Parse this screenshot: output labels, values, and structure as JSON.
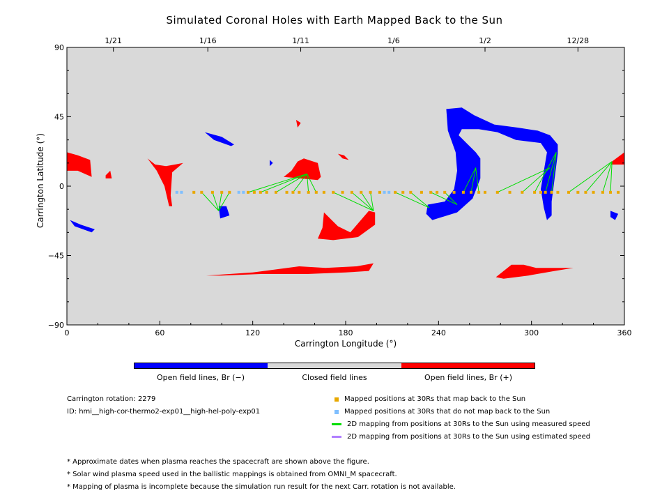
{
  "chart_data": {
    "type": "scatter",
    "title": "Simulated Coronal Holes with Earth Mapped Back to the Sun",
    "xlabel": "Carrington Longitude (°)",
    "ylabel": "Carrington Latitude (°)",
    "xlim": [
      0,
      360
    ],
    "ylim": [
      -90,
      90
    ],
    "x_ticks": [
      "0",
      "60",
      "120",
      "180",
      "240",
      "300",
      "360"
    ],
    "y_ticks": [
      "90",
      "45",
      "0",
      "−45",
      "−90"
    ],
    "top_axis": [
      {
        "lon": 30,
        "label": "1/21"
      },
      {
        "lon": 91,
        "label": "1/16"
      },
      {
        "lon": 151,
        "label": "1/11"
      },
      {
        "lon": 211,
        "label": "1/6"
      },
      {
        "lon": 270,
        "label": "1/2"
      },
      {
        "lon": 330,
        "label": "12/28"
      }
    ],
    "background_color": "#d9d9d9",
    "colors": {
      "negative": "#0000ff",
      "positive": "#ff0000",
      "mapped": "#e8a800",
      "unmapped": "#7fbfff",
      "measured_line": "#00dd00",
      "estimated_line": "#b07fff"
    },
    "mapped_positions_30Rs": [
      [
        82,
        -4
      ],
      [
        87,
        -4
      ],
      [
        94,
        -4
      ],
      [
        100,
        -4
      ],
      [
        105,
        -4
      ],
      [
        117,
        -4
      ],
      [
        121,
        -4
      ],
      [
        125,
        -4
      ],
      [
        129,
        -4
      ],
      [
        135,
        -4
      ],
      [
        142,
        -4
      ],
      [
        146,
        -4
      ],
      [
        150,
        -4
      ],
      [
        156,
        -4
      ],
      [
        161,
        -4
      ],
      [
        166,
        -4
      ],
      [
        172,
        -4
      ],
      [
        178,
        -4
      ],
      [
        184,
        -4
      ],
      [
        190,
        -4
      ],
      [
        196,
        -4
      ],
      [
        202,
        -4
      ],
      [
        212,
        -4
      ],
      [
        217,
        -4
      ],
      [
        222,
        -4
      ],
      [
        229,
        -4
      ],
      [
        235,
        -4
      ],
      [
        239,
        -4
      ],
      [
        244,
        -4
      ],
      [
        250,
        -4
      ],
      [
        256,
        -4
      ],
      [
        261,
        -4
      ],
      [
        266,
        -4
      ],
      [
        270,
        -4
      ],
      [
        278,
        -4
      ],
      [
        286,
        -4
      ],
      [
        294,
        -4
      ],
      [
        302,
        -4
      ],
      [
        306,
        -4
      ],
      [
        309,
        -4
      ],
      [
        313,
        -4
      ],
      [
        317,
        -4
      ],
      [
        324,
        -4
      ],
      [
        330,
        -4
      ],
      [
        335,
        -4
      ],
      [
        340,
        -4
      ],
      [
        346,
        -4
      ],
      [
        351,
        -4
      ],
      [
        356,
        -4
      ]
    ],
    "unmapped_positions_30Rs": [
      [
        71,
        -4
      ],
      [
        74,
        -4
      ],
      [
        111,
        -4
      ],
      [
        114,
        -4
      ],
      [
        205,
        -4
      ],
      [
        208,
        -4
      ]
    ],
    "measured_speed_mappings": [
      [
        [
          87,
          -4
        ],
        [
          98,
          -16
        ]
      ],
      [
        [
          94,
          -4
        ],
        [
          98,
          -16
        ]
      ],
      [
        [
          100,
          -4
        ],
        [
          98,
          -16
        ]
      ],
      [
        [
          105,
          -4
        ],
        [
          98,
          -16
        ]
      ],
      [
        [
          117,
          -4
        ],
        [
          155,
          8
        ]
      ],
      [
        [
          125,
          -4
        ],
        [
          155,
          8
        ]
      ],
      [
        [
          135,
          -4
        ],
        [
          155,
          8
        ]
      ],
      [
        [
          146,
          -4
        ],
        [
          155,
          8
        ]
      ],
      [
        [
          156,
          -4
        ],
        [
          155,
          8
        ]
      ],
      [
        [
          161,
          -4
        ],
        [
          155,
          8
        ]
      ],
      [
        [
          172,
          -4
        ],
        [
          198,
          -16
        ]
      ],
      [
        [
          184,
          -4
        ],
        [
          198,
          -16
        ]
      ],
      [
        [
          190,
          -4
        ],
        [
          198,
          -16
        ]
      ],
      [
        [
          196,
          -4
        ],
        [
          198,
          -16
        ]
      ],
      [
        [
          212,
          -4
        ],
        [
          234,
          -14
        ]
      ],
      [
        [
          222,
          -4
        ],
        [
          234,
          -14
        ]
      ],
      [
        [
          235,
          -4
        ],
        [
          252,
          -12
        ]
      ],
      [
        [
          244,
          -4
        ],
        [
          252,
          -12
        ]
      ],
      [
        [
          256,
          -4
        ],
        [
          264,
          12
        ]
      ],
      [
        [
          261,
          -4
        ],
        [
          264,
          12
        ]
      ],
      [
        [
          266,
          -4
        ],
        [
          264,
          12
        ]
      ],
      [
        [
          278,
          -4
        ],
        [
          312,
          12
        ]
      ],
      [
        [
          294,
          -4
        ],
        [
          312,
          12
        ]
      ],
      [
        [
          302,
          -4
        ],
        [
          316,
          22
        ]
      ],
      [
        [
          309,
          -4
        ],
        [
          316,
          22
        ]
      ],
      [
        [
          313,
          -4
        ],
        [
          316,
          22
        ]
      ],
      [
        [
          324,
          -4
        ],
        [
          352,
          16
        ]
      ],
      [
        [
          335,
          -4
        ],
        [
          352,
          16
        ]
      ],
      [
        [
          346,
          -4
        ],
        [
          352,
          16
        ]
      ],
      [
        [
          351,
          -4
        ],
        [
          352,
          16
        ]
      ]
    ],
    "coronal_holes": [
      {
        "polarity": "positive",
        "points": [
          [
            0,
            22
          ],
          [
            7,
            20
          ],
          [
            15,
            17
          ],
          [
            16,
            6
          ],
          [
            7,
            10
          ],
          [
            0,
            10
          ]
        ]
      },
      {
        "polarity": "positive",
        "points": [
          [
            352,
            16
          ],
          [
            360,
            22
          ],
          [
            360,
            14
          ],
          [
            352,
            14
          ]
        ]
      },
      {
        "polarity": "positive",
        "points": [
          [
            25,
            7
          ],
          [
            28,
            10
          ],
          [
            29,
            5
          ],
          [
            25,
            5
          ]
        ]
      },
      {
        "polarity": "positive",
        "points": [
          [
            52,
            18
          ],
          [
            57,
            14
          ],
          [
            64,
            13
          ],
          [
            75,
            15
          ],
          [
            68,
            9
          ],
          [
            67,
            -6
          ],
          [
            68,
            -13
          ],
          [
            66,
            -13
          ],
          [
            63,
            0
          ],
          [
            58,
            10
          ]
        ]
      },
      {
        "polarity": "positive",
        "points": [
          [
            140,
            6
          ],
          [
            145,
            10
          ],
          [
            149,
            16
          ],
          [
            153,
            18
          ],
          [
            162,
            15
          ],
          [
            164,
            6
          ],
          [
            162,
            4
          ]
        ]
      },
      {
        "polarity": "positive",
        "points": [
          [
            148,
            43
          ],
          [
            151,
            41
          ],
          [
            149,
            38
          ]
        ]
      },
      {
        "polarity": "positive",
        "points": [
          [
            175,
            21
          ],
          [
            179,
            20
          ],
          [
            182,
            17
          ],
          [
            178,
            18
          ]
        ]
      },
      {
        "polarity": "positive",
        "points": [
          [
            166,
            -17
          ],
          [
            175,
            -26
          ],
          [
            183,
            -30
          ],
          [
            195,
            -16
          ],
          [
            199,
            -17
          ],
          [
            199,
            -25
          ],
          [
            188,
            -33
          ],
          [
            172,
            -35
          ],
          [
            162,
            -34
          ],
          [
            165,
            -27
          ]
        ]
      },
      {
        "polarity": "positive",
        "points": [
          [
            90,
            -58
          ],
          [
            120,
            -56
          ],
          [
            150,
            -52
          ],
          [
            167,
            -53
          ],
          [
            187,
            -52
          ],
          [
            198,
            -50
          ],
          [
            195,
            -55
          ],
          [
            180,
            -56
          ],
          [
            155,
            -57
          ],
          [
            125,
            -57
          ],
          [
            100,
            -58
          ]
        ]
      },
      {
        "polarity": "positive",
        "points": [
          [
            277,
            -59
          ],
          [
            287,
            -51
          ],
          [
            295,
            -51
          ],
          [
            303,
            -53
          ],
          [
            327,
            -53
          ],
          [
            315,
            -55
          ],
          [
            298,
            -58
          ],
          [
            282,
            -60
          ]
        ]
      },
      {
        "polarity": "negative",
        "points": [
          [
            2,
            -22
          ],
          [
            9,
            -25
          ],
          [
            18,
            -28
          ],
          [
            16,
            -30
          ],
          [
            5,
            -26
          ]
        ]
      },
      {
        "polarity": "negative",
        "points": [
          [
            98,
            -13
          ],
          [
            103,
            -13
          ],
          [
            105,
            -19
          ],
          [
            99,
            -21
          ]
        ]
      },
      {
        "polarity": "negative",
        "points": [
          [
            89,
            35
          ],
          [
            100,
            32
          ],
          [
            108,
            27
          ],
          [
            106,
            26
          ],
          [
            95,
            30
          ]
        ]
      },
      {
        "polarity": "negative",
        "points": [
          [
            131,
            17
          ],
          [
            133,
            15
          ],
          [
            131,
            13
          ]
        ]
      },
      {
        "polarity": "negative",
        "points": [
          [
            245,
            50
          ],
          [
            255,
            51
          ],
          [
            263,
            46
          ],
          [
            276,
            40
          ],
          [
            291,
            38
          ],
          [
            304,
            36
          ],
          [
            312,
            33
          ],
          [
            317,
            27
          ],
          [
            317,
            21
          ],
          [
            313,
            -10
          ],
          [
            313,
            -19
          ],
          [
            310,
            -22
          ],
          [
            308,
            -14
          ],
          [
            306,
            -2
          ],
          [
            310,
            22
          ],
          [
            306,
            28
          ],
          [
            290,
            30
          ],
          [
            278,
            35
          ],
          [
            266,
            37
          ],
          [
            255,
            37
          ],
          [
            253,
            33
          ],
          [
            258,
            28
          ],
          [
            264,
            22
          ],
          [
            267,
            18
          ],
          [
            267,
            5
          ],
          [
            262,
            -8
          ],
          [
            252,
            -17
          ],
          [
            236,
            -22
          ],
          [
            232,
            -18
          ],
          [
            233,
            -12
          ],
          [
            244,
            -10
          ],
          [
            250,
            -2
          ],
          [
            252,
            10
          ],
          [
            251,
            22
          ],
          [
            246,
            36
          ]
        ]
      },
      {
        "polarity": "negative",
        "points": [
          [
            351,
            -16
          ],
          [
            356,
            -18
          ],
          [
            354,
            -22
          ],
          [
            351,
            -20
          ]
        ]
      }
    ]
  },
  "colorbar": {
    "labels": [
      "Open field lines, Br (−)",
      "Closed field lines",
      "Open field lines, Br (+)"
    ],
    "colors": [
      "#0000ff",
      "#d9d9d9",
      "#ff0000"
    ]
  },
  "info": {
    "rotation": "Carrington rotation: 2279",
    "id": "ID: hmi__high-cor-thermo2-exp01__high-hel-poly-exp01"
  },
  "legend": [
    {
      "label": "Mapped positions at 30Rs that map back to the Sun",
      "kind": "square",
      "color": "#e8a800"
    },
    {
      "label": "Mapped positions at 30Rs that do not map back to the Sun",
      "kind": "square",
      "color": "#7fbfff"
    },
    {
      "label": "2D mapping from positions at 30Rs to the Sun using measured speed",
      "kind": "line",
      "color": "#00dd00"
    },
    {
      "label": "2D mapping from positions at 30Rs to the Sun using estimated speed",
      "kind": "line",
      "color": "#b07fff"
    }
  ],
  "notes": [
    "* Approximate dates when plasma reaches the spacecraft are shown above the figure.",
    "* Solar wind plasma speed used in the ballistic mappings is obtained from OMNI_M spacecraft.",
    "* Mapping of plasma is incomplete because the simulation run result for the next Carr. rotation is not available."
  ]
}
